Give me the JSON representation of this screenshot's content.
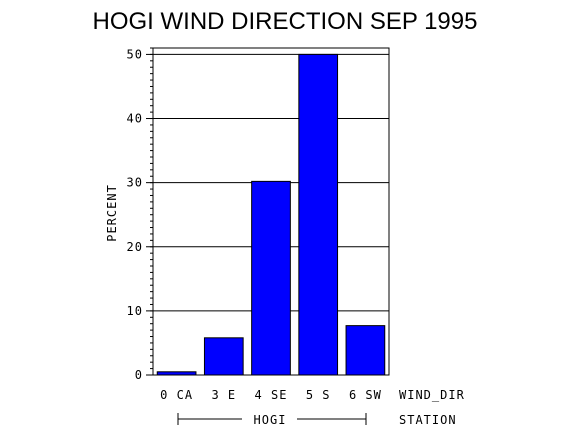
{
  "chart_data": {
    "type": "bar",
    "title": "HOGI WIND DIRECTION SEP 1995",
    "ylabel": "PERCENT",
    "xlabel": "WIND_DIR",
    "group_axis_label": "STATION",
    "group_label": "HOGI",
    "categories": [
      "0 CA",
      "3 E",
      "4 SE",
      "5 S",
      "6 SW"
    ],
    "values": [
      0.5,
      5.8,
      30.2,
      50.0,
      7.7
    ],
    "ylim": [
      0,
      51
    ],
    "yticks": [
      0,
      10,
      20,
      30,
      40,
      50
    ],
    "grid": true,
    "bar_color": "#0000ff"
  }
}
